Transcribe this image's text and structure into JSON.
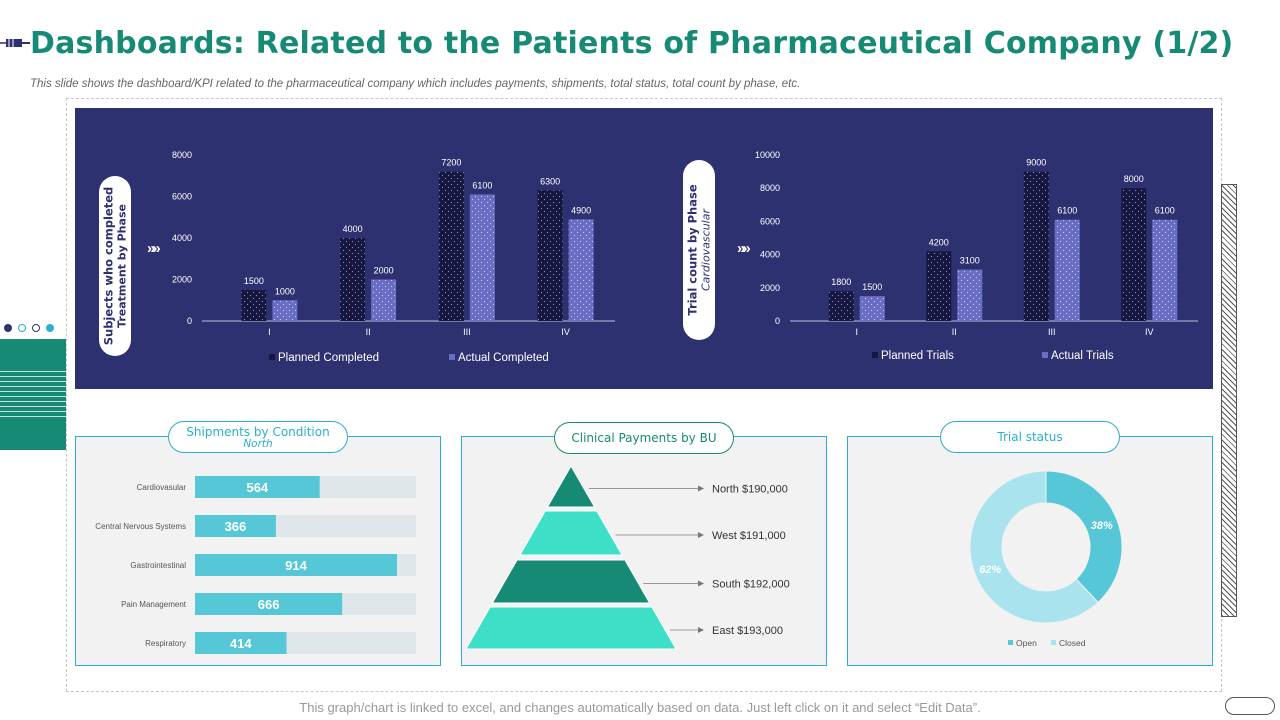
{
  "header": {
    "title": "Dashboards: Related to the Patients of Pharmaceutical Company (1/2)",
    "subtitle": "This slide shows the dashboard/KPI related to the pharmaceutical company which includes payments, shipments, total status, total count by phase, etc."
  },
  "colors": {
    "brand": "#168a74",
    "navy": "#2e3170",
    "accent": "#2ab0c8",
    "teal_light": "#3de0c7",
    "bar_light": "#6a6dc4",
    "bar_dark": "#16173f"
  },
  "panels": {
    "subjects_pill": {
      "line1": "Subjects who completed",
      "line2": "Treatment by Phase"
    },
    "trial_pill": {
      "line1": "Trial count by Phase",
      "line2": "Cardiovascular"
    },
    "arrow": "»»",
    "shipments": {
      "title": "Shipments by Condition",
      "subtitle": "North"
    },
    "payments": {
      "title": "Clinical Payments by BU"
    },
    "trial_status": {
      "title": "Trial status"
    }
  },
  "footer": {
    "note": "This graph/chart is linked to excel, and changes automatically based on data. Just left click on it and select “Edit Data”."
  },
  "chart_data": [
    {
      "type": "bar",
      "categories": [
        "I",
        "II",
        "III",
        "IV"
      ],
      "series": [
        {
          "name": "Planned Completed",
          "values": [
            1500,
            4000,
            7200,
            6300
          ]
        },
        {
          "name": "Actual Completed",
          "values": [
            1000,
            2000,
            6100,
            4900
          ]
        }
      ],
      "ylim": [
        0,
        8000
      ],
      "yticks": [
        0,
        2000,
        4000,
        6000,
        8000
      ],
      "legend": "bottom"
    },
    {
      "type": "bar",
      "categories": [
        "I",
        "II",
        "III",
        "IV"
      ],
      "series": [
        {
          "name": "Planned Trials",
          "values": [
            1800,
            4200,
            9000,
            8000
          ]
        },
        {
          "name": "Actual Trials",
          "values": [
            1500,
            3100,
            6100,
            6100
          ]
        }
      ],
      "ylim": [
        0,
        10000
      ],
      "yticks": [
        0,
        2000,
        4000,
        6000,
        8000,
        10000
      ],
      "legend": "bottom"
    },
    {
      "type": "bar",
      "orientation": "horizontal",
      "title": "Shipments by Condition",
      "subtitle": "North",
      "categories": [
        "Cardiovasular",
        "Central Nervous Systems",
        "Gastrointestinal",
        "Pain Management",
        "Respiratory"
      ],
      "values": [
        564,
        366,
        914,
        666,
        414
      ],
      "xlim": [
        0,
        1000
      ]
    },
    {
      "type": "pyramid",
      "title": "Clinical Payments by BU",
      "categories": [
        "North",
        "West",
        "South",
        "East"
      ],
      "values": [
        190000,
        191000,
        192000,
        193000
      ],
      "labels": [
        "North $190,000",
        "West $191,000",
        "South $192,000",
        "East $193,000"
      ]
    },
    {
      "type": "pie",
      "title": "Trial status",
      "categories": [
        "Open",
        "Closed"
      ],
      "values": [
        38,
        62
      ],
      "labels": [
        "38%",
        "62%"
      ],
      "legend": "bottom"
    }
  ]
}
